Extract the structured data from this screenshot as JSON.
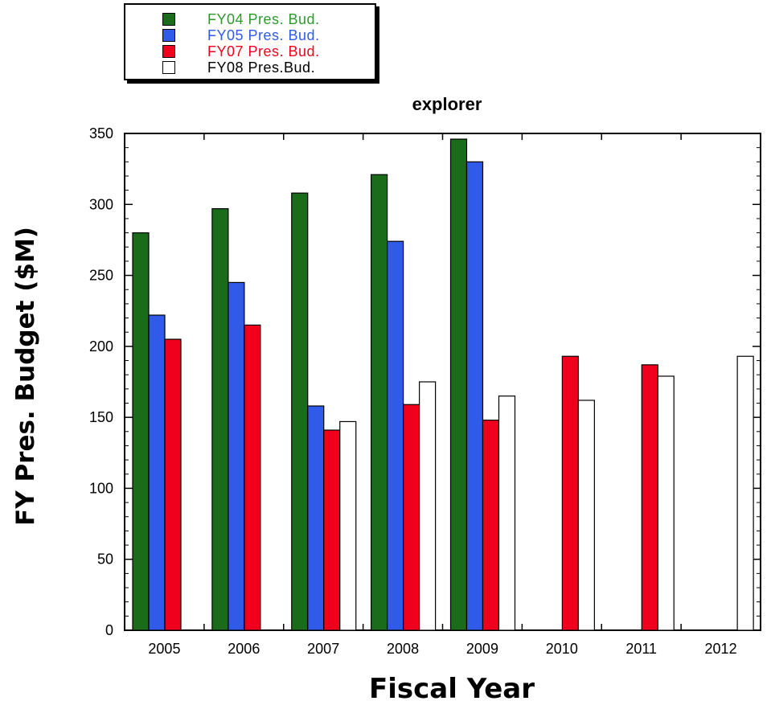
{
  "chart_data": {
    "type": "bar",
    "title": "explorer",
    "xlabel": "Fiscal Year",
    "ylabel": "FY Pres. Budget ($M)",
    "categories": [
      "2005",
      "2006",
      "2007",
      "2008",
      "2009",
      "2010",
      "2011",
      "2012"
    ],
    "ylim": [
      0,
      350
    ],
    "yticks": [
      0,
      50,
      100,
      150,
      200,
      250,
      300,
      350
    ],
    "grid": false,
    "legend_position": "top-left, above plot",
    "series": [
      {
        "name": "FY04 Pres. Bud.",
        "color": "#1a6b1a",
        "label_color": "#2e9a2e",
        "values": [
          280,
          297,
          308,
          321,
          346,
          null,
          null,
          null
        ]
      },
      {
        "name": "FY05 Pres. Bud.",
        "color": "#2f5be8",
        "label_color": "#2f5be8",
        "values": [
          222,
          245,
          158,
          274,
          330,
          null,
          null,
          null
        ]
      },
      {
        "name": "FY07 Pres. Bud.",
        "color": "#f0001c",
        "label_color": "#f0001c",
        "values": [
          205,
          215,
          141,
          159,
          148,
          193,
          187,
          null
        ]
      },
      {
        "name": "FY08 Pres.Bud.",
        "color": "#ffffff",
        "label_color": "#000000",
        "values": [
          null,
          null,
          147,
          175,
          165,
          162,
          179,
          193
        ]
      }
    ]
  }
}
